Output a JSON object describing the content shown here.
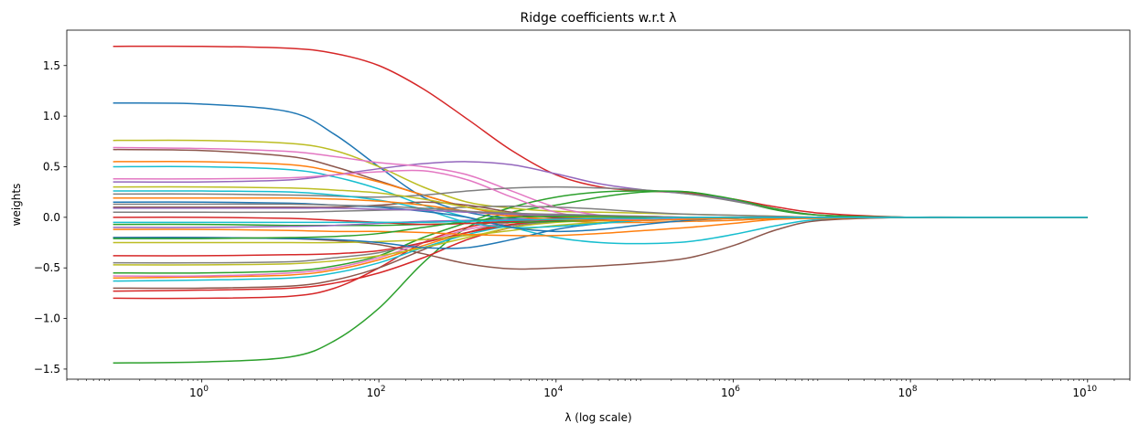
{
  "chart_data": {
    "type": "line",
    "title": "Ridge coefficients w.r.t λ",
    "xlabel": "λ (log scale)",
    "ylabel": "weights",
    "xscale": "log",
    "xlim": [
      0.03,
      30000000000
    ],
    "ylim": [
      -1.6,
      1.85
    ],
    "grid": false,
    "legend": "none",
    "xticks": [
      {
        "value": 1,
        "base": "10",
        "exp": "0"
      },
      {
        "value": 100,
        "base": "10",
        "exp": "2"
      },
      {
        "value": 10000,
        "base": "10",
        "exp": "4"
      },
      {
        "value": 1000000,
        "base": "10",
        "exp": "6"
      },
      {
        "value": 100000000,
        "base": "10",
        "exp": "8"
      },
      {
        "value": 10000000000,
        "base": "10",
        "exp": "10"
      }
    ],
    "yticks": [
      {
        "value": -1.5,
        "label": "−1.5"
      },
      {
        "value": -1.0,
        "label": "−1.0"
      },
      {
        "value": -0.5,
        "label": "−0.5"
      },
      {
        "value": 0.0,
        "label": "0.0"
      },
      {
        "value": 0.5,
        "label": "0.5"
      },
      {
        "value": 1.0,
        "label": "1.0"
      },
      {
        "value": 1.5,
        "label": "1.5"
      }
    ],
    "x": [
      0.1,
      1,
      10,
      31.6,
      100,
      316,
      1000,
      3162,
      10000,
      31623,
      100000,
      316228,
      1000000,
      3162278,
      10000000,
      100000000,
      1000000000,
      10000000000
    ],
    "series": [
      {
        "color": "#d62728",
        "values": [
          1.69,
          1.69,
          1.67,
          1.62,
          1.5,
          1.27,
          0.97,
          0.66,
          0.42,
          0.3,
          0.26,
          0.24,
          0.18,
          0.1,
          0.04,
          0.0,
          0.0,
          0.0
        ]
      },
      {
        "color": "#1f77b4",
        "values": [
          1.13,
          1.12,
          1.04,
          0.82,
          0.5,
          0.2,
          0.05,
          -0.01,
          -0.02,
          -0.02,
          -0.02,
          -0.02,
          -0.01,
          -0.01,
          0.0,
          0.0,
          0.0,
          0.0
        ]
      },
      {
        "color": "#2ca02c",
        "values": [
          -1.44,
          -1.43,
          -1.38,
          -1.22,
          -0.9,
          -0.45,
          -0.1,
          0.05,
          0.12,
          0.2,
          0.25,
          0.25,
          0.17,
          0.07,
          0.02,
          0.0,
          0.0,
          0.0
        ]
      },
      {
        "color": "#bcbd22",
        "values": [
          0.76,
          0.76,
          0.73,
          0.66,
          0.5,
          0.3,
          0.15,
          0.09,
          0.06,
          0.05,
          0.04,
          0.03,
          0.02,
          0.01,
          0.0,
          0.0,
          0.0,
          0.0
        ]
      },
      {
        "color": "#9467bd",
        "values": [
          0.35,
          0.35,
          0.37,
          0.42,
          0.48,
          0.53,
          0.55,
          0.52,
          0.43,
          0.33,
          0.27,
          0.23,
          0.17,
          0.08,
          0.02,
          0.0,
          0.0,
          0.0
        ]
      },
      {
        "color": "#e377c2",
        "values": [
          0.69,
          0.68,
          0.65,
          0.6,
          0.54,
          0.5,
          0.42,
          0.26,
          0.1,
          0.02,
          -0.01,
          -0.01,
          -0.01,
          0.0,
          0.0,
          0.0,
          0.0,
          0.0
        ]
      },
      {
        "color": "#8c564b",
        "values": [
          0.67,
          0.66,
          0.6,
          0.5,
          0.36,
          0.22,
          0.1,
          0.03,
          0.0,
          -0.01,
          -0.01,
          -0.01,
          -0.01,
          0.0,
          0.0,
          0.0,
          0.0,
          0.0
        ]
      },
      {
        "color": "#17becf",
        "values": [
          0.5,
          0.5,
          0.47,
          0.4,
          0.28,
          0.12,
          0.0,
          -0.1,
          -0.2,
          -0.25,
          -0.26,
          -0.24,
          -0.17,
          -0.08,
          -0.02,
          0.0,
          0.0,
          0.0
        ]
      },
      {
        "color": "#ff7f0e",
        "values": [
          0.55,
          0.55,
          0.52,
          0.45,
          0.35,
          0.22,
          0.1,
          0.02,
          -0.03,
          -0.05,
          -0.05,
          -0.04,
          -0.03,
          -0.01,
          0.0,
          0.0,
          0.0,
          0.0
        ]
      },
      {
        "color": "#7f7f7f",
        "values": [
          0.23,
          0.23,
          0.22,
          0.21,
          0.2,
          0.22,
          0.26,
          0.29,
          0.3,
          0.29,
          0.27,
          0.23,
          0.16,
          0.08,
          0.02,
          0.0,
          0.0,
          0.0
        ]
      },
      {
        "color": "#8c564b",
        "values": [
          -0.2,
          -0.2,
          -0.21,
          -0.23,
          -0.27,
          -0.36,
          -0.46,
          -0.51,
          -0.5,
          -0.48,
          -0.45,
          -0.4,
          -0.28,
          -0.12,
          -0.03,
          0.0,
          0.0,
          0.0
        ]
      },
      {
        "color": "#2ca02c",
        "values": [
          -0.55,
          -0.55,
          -0.53,
          -0.48,
          -0.38,
          -0.2,
          -0.05,
          0.1,
          0.2,
          0.25,
          0.26,
          0.25,
          0.18,
          0.08,
          0.02,
          0.0,
          0.0,
          0.0
        ]
      },
      {
        "color": "#d62728",
        "values": [
          -0.8,
          -0.8,
          -0.78,
          -0.7,
          -0.5,
          -0.25,
          -0.1,
          -0.03,
          -0.01,
          -0.01,
          -0.01,
          -0.01,
          0.0,
          0.0,
          0.0,
          0.0,
          0.0,
          0.0
        ]
      },
      {
        "color": "#d62728",
        "values": [
          -0.73,
          -0.72,
          -0.7,
          -0.65,
          -0.55,
          -0.4,
          -0.22,
          -0.1,
          -0.04,
          -0.02,
          -0.01,
          -0.01,
          0.0,
          0.0,
          0.0,
          0.0,
          0.0,
          0.0
        ]
      },
      {
        "color": "#8c564b",
        "values": [
          -0.7,
          -0.7,
          -0.68,
          -0.62,
          -0.5,
          -0.32,
          -0.15,
          -0.05,
          -0.02,
          -0.01,
          -0.01,
          0.0,
          0.0,
          0.0,
          0.0,
          0.0,
          0.0,
          0.0
        ]
      },
      {
        "color": "#17becf",
        "values": [
          -0.63,
          -0.62,
          -0.6,
          -0.55,
          -0.45,
          -0.3,
          -0.17,
          -0.08,
          -0.03,
          -0.02,
          -0.01,
          0.0,
          0.0,
          0.0,
          0.0,
          0.0,
          0.0,
          0.0
        ]
      },
      {
        "color": "#ff7f0e",
        "values": [
          -0.6,
          -0.59,
          -0.57,
          -0.52,
          -0.42,
          -0.28,
          -0.15,
          -0.07,
          -0.03,
          -0.01,
          -0.01,
          0.0,
          0.0,
          0.0,
          0.0,
          0.0,
          0.0,
          0.0
        ]
      },
      {
        "color": "#e377c2",
        "values": [
          -0.58,
          -0.58,
          -0.55,
          -0.5,
          -0.4,
          -0.25,
          -0.12,
          -0.05,
          -0.02,
          -0.01,
          0.0,
          0.0,
          0.0,
          0.0,
          0.0,
          0.0,
          0.0,
          0.0
        ]
      },
      {
        "color": "#bcbd22",
        "values": [
          -0.47,
          -0.47,
          -0.46,
          -0.43,
          -0.38,
          -0.3,
          -0.2,
          -0.1,
          -0.05,
          -0.03,
          -0.02,
          -0.01,
          0.0,
          0.0,
          0.0,
          0.0,
          0.0,
          0.0
        ]
      },
      {
        "color": "#7f7f7f",
        "values": [
          -0.45,
          -0.45,
          -0.44,
          -0.4,
          -0.35,
          -0.25,
          -0.15,
          -0.08,
          -0.04,
          -0.02,
          -0.01,
          0.0,
          0.0,
          0.0,
          0.0,
          0.0,
          0.0,
          0.0
        ]
      },
      {
        "color": "#d62728",
        "values": [
          -0.38,
          -0.38,
          -0.37,
          -0.36,
          -0.33,
          -0.25,
          -0.15,
          -0.07,
          -0.03,
          -0.02,
          -0.01,
          0.0,
          0.0,
          0.0,
          0.0,
          0.0,
          0.0,
          0.0
        ]
      },
      {
        "color": "#bcbd22",
        "values": [
          -0.25,
          -0.25,
          -0.25,
          -0.25,
          -0.24,
          -0.22,
          -0.18,
          -0.13,
          -0.08,
          -0.05,
          -0.03,
          -0.02,
          -0.01,
          0.0,
          0.0,
          0.0,
          0.0,
          0.0
        ]
      },
      {
        "color": "#1f77b4",
        "values": [
          -0.2,
          -0.2,
          -0.21,
          -0.22,
          -0.25,
          -0.3,
          -0.3,
          -0.22,
          -0.12,
          -0.06,
          -0.03,
          -0.02,
          -0.01,
          0.0,
          0.0,
          0.0,
          0.0,
          0.0
        ]
      },
      {
        "color": "#ff7f0e",
        "values": [
          -0.12,
          -0.12,
          -0.13,
          -0.14,
          -0.14,
          -0.15,
          -0.17,
          -0.18,
          -0.18,
          -0.16,
          -0.13,
          -0.1,
          -0.06,
          -0.02,
          -0.01,
          0.0,
          0.0,
          0.0
        ]
      },
      {
        "color": "#2ca02c",
        "values": [
          -0.07,
          -0.07,
          -0.08,
          -0.08,
          -0.08,
          -0.07,
          -0.06,
          -0.05,
          -0.04,
          -0.03,
          -0.02,
          -0.01,
          -0.01,
          0.0,
          0.0,
          0.0,
          0.0,
          0.0
        ]
      },
      {
        "color": "#9467bd",
        "values": [
          -0.1,
          -0.1,
          -0.09,
          -0.08,
          -0.06,
          -0.04,
          -0.03,
          -0.02,
          -0.02,
          -0.01,
          -0.01,
          0.0,
          0.0,
          0.0,
          0.0,
          0.0,
          0.0,
          0.0
        ]
      },
      {
        "color": "#7f7f7f",
        "values": [
          0.05,
          0.05,
          0.05,
          0.06,
          0.07,
          0.08,
          0.1,
          0.11,
          0.1,
          0.08,
          0.05,
          0.03,
          0.02,
          0.01,
          0.0,
          0.0,
          0.0,
          0.0
        ]
      },
      {
        "color": "#8c564b",
        "values": [
          0.1,
          0.1,
          0.1,
          0.1,
          0.12,
          0.15,
          0.12,
          0.05,
          0.0,
          -0.02,
          -0.02,
          -0.01,
          0.0,
          0.0,
          0.0,
          0.0,
          0.0,
          0.0
        ]
      },
      {
        "color": "#e377c2",
        "values": [
          0.38,
          0.38,
          0.39,
          0.42,
          0.45,
          0.46,
          0.37,
          0.2,
          0.05,
          -0.01,
          -0.02,
          -0.01,
          0.0,
          0.0,
          0.0,
          0.0,
          0.0,
          0.0
        ]
      },
      {
        "color": "#17becf",
        "values": [
          0.26,
          0.26,
          0.25,
          0.22,
          0.17,
          0.08,
          -0.05,
          -0.1,
          -0.09,
          -0.06,
          -0.03,
          -0.02,
          -0.01,
          0.0,
          0.0,
          0.0,
          0.0,
          0.0
        ]
      },
      {
        "color": "#bcbd22",
        "values": [
          0.3,
          0.3,
          0.29,
          0.27,
          0.24,
          0.18,
          0.1,
          0.04,
          0.01,
          0.0,
          0.0,
          0.0,
          0.0,
          0.0,
          0.0,
          0.0,
          0.0,
          0.0
        ]
      },
      {
        "color": "#1f77b4",
        "values": [
          0.15,
          0.15,
          0.14,
          0.12,
          0.1,
          0.06,
          0.0,
          -0.1,
          -0.14,
          -0.12,
          -0.07,
          -0.03,
          -0.01,
          0.0,
          0.0,
          0.0,
          0.0,
          0.0
        ]
      },
      {
        "color": "#d62728",
        "values": [
          0.0,
          0.0,
          -0.01,
          -0.03,
          -0.05,
          -0.07,
          -0.06,
          -0.04,
          -0.02,
          -0.01,
          -0.01,
          0.0,
          0.0,
          0.0,
          0.0,
          0.0,
          0.0,
          0.0
        ]
      },
      {
        "color": "#ff7f0e",
        "values": [
          0.19,
          0.19,
          0.19,
          0.18,
          0.16,
          0.12,
          0.06,
          0.01,
          -0.02,
          -0.03,
          -0.03,
          -0.02,
          -0.01,
          0.0,
          0.0,
          0.0,
          0.0,
          0.0
        ]
      },
      {
        "color": "#9467bd",
        "values": [
          0.09,
          0.09,
          0.09,
          0.09,
          0.08,
          0.07,
          0.05,
          0.03,
          0.02,
          0.01,
          0.01,
          0.0,
          0.0,
          0.0,
          0.0,
          0.0,
          0.0,
          0.0
        ]
      },
      {
        "color": "#2ca02c",
        "values": [
          -0.21,
          -0.21,
          -0.2,
          -0.19,
          -0.16,
          -0.1,
          -0.04,
          0.0,
          0.01,
          0.01,
          0.0,
          0.0,
          0.0,
          0.0,
          0.0,
          0.0,
          0.0,
          0.0
        ]
      },
      {
        "color": "#7f7f7f",
        "values": [
          0.13,
          0.13,
          0.13,
          0.12,
          0.11,
          0.09,
          0.06,
          0.04,
          0.03,
          0.02,
          0.01,
          0.0,
          0.0,
          0.0,
          0.0,
          0.0,
          0.0,
          0.0
        ]
      },
      {
        "color": "#17becf",
        "values": [
          -0.05,
          -0.05,
          -0.05,
          -0.05,
          -0.05,
          -0.05,
          -0.04,
          -0.03,
          -0.02,
          -0.01,
          -0.01,
          0.0,
          0.0,
          0.0,
          0.0,
          0.0,
          0.0,
          0.0
        ]
      }
    ]
  }
}
